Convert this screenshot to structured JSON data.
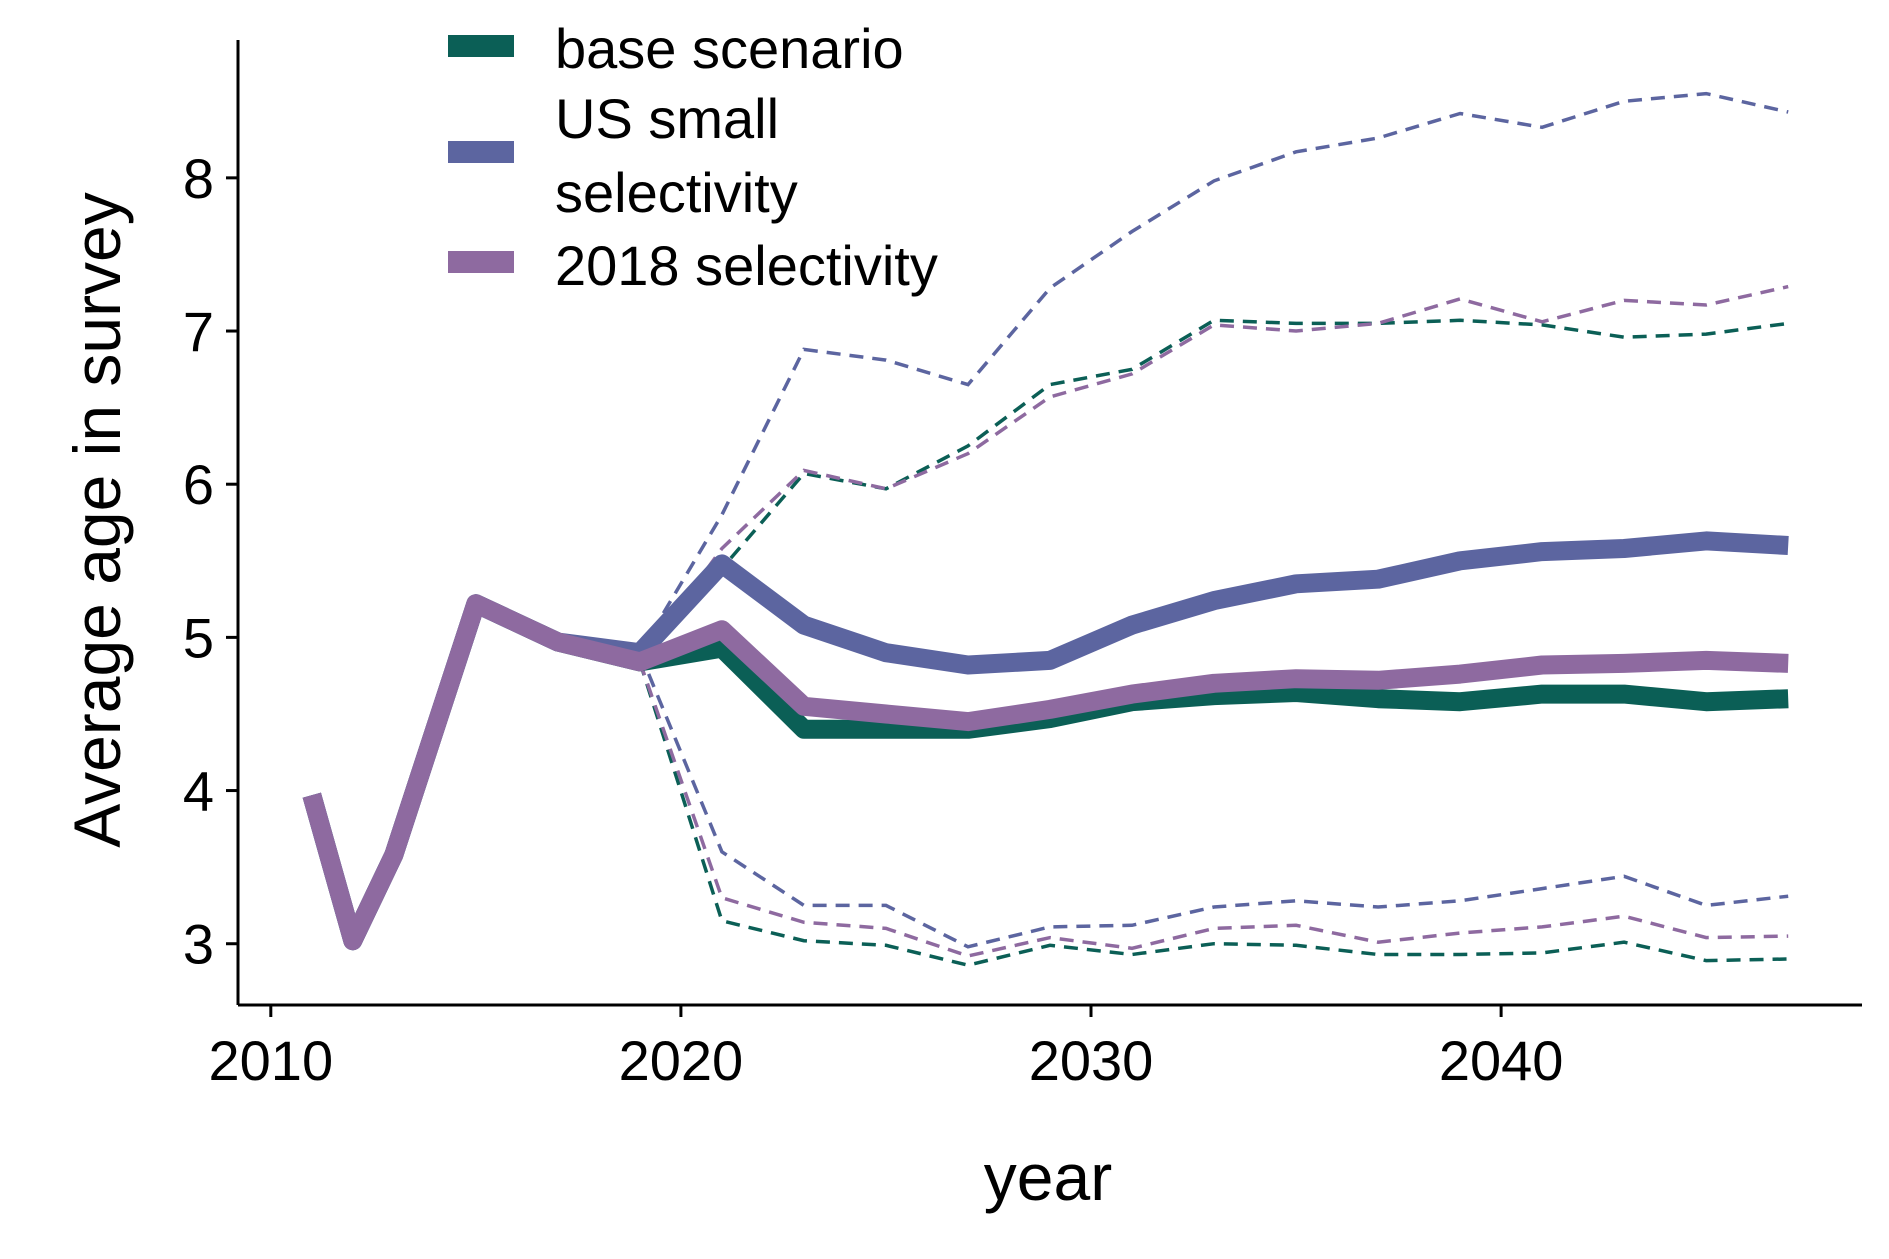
{
  "chart_data": {
    "type": "line",
    "title": "",
    "xlabel": "year",
    "ylabel": "Average age in survey",
    "xlim": [
      2009.2,
      2048.8
    ],
    "ylim": [
      2.6,
      8.9
    ],
    "xticks": [
      2010,
      2020,
      2030,
      2040
    ],
    "yticks": [
      3,
      4,
      5,
      6,
      7,
      8
    ],
    "grid": false,
    "legend_position": "top-left",
    "series": [
      {
        "name": "base scenario",
        "color": "#0b5f56",
        "median": {
          "x": [
            2011,
            2012,
            2013,
            2015,
            2017,
            2019,
            2021,
            2023,
            2025,
            2027,
            2029,
            2031,
            2033,
            2035,
            2037,
            2039,
            2041,
            2043,
            2045,
            2047
          ],
          "y": [
            3.97,
            3.02,
            3.58,
            5.22,
            4.97,
            4.84,
            4.93,
            4.4,
            4.4,
            4.4,
            4.47,
            4.58,
            4.62,
            4.64,
            4.6,
            4.58,
            4.63,
            4.63,
            4.58,
            4.6
          ]
        },
        "lower": {
          "x": [
            2019,
            2021,
            2023,
            2025,
            2027,
            2029,
            2031,
            2033,
            2035,
            2037,
            2039,
            2041,
            2043,
            2045,
            2047
          ],
          "y": [
            4.84,
            3.15,
            3.02,
            2.99,
            2.86,
            2.99,
            2.93,
            3.0,
            2.99,
            2.93,
            2.93,
            2.94,
            3.01,
            2.89,
            2.9
          ]
        },
        "upper": {
          "x": [
            2019,
            2021,
            2023,
            2025,
            2027,
            2029,
            2031,
            2033,
            2035,
            2037,
            2039,
            2041,
            2043,
            2045,
            2047
          ],
          "y": [
            4.84,
            5.45,
            6.07,
            5.97,
            6.25,
            6.65,
            6.75,
            7.07,
            7.05,
            7.05,
            7.07,
            7.04,
            6.96,
            6.98,
            7.05
          ]
        }
      },
      {
        "name": "US small selectivity",
        "color": "#5c65a0",
        "median": {
          "x": [
            2011,
            2012,
            2013,
            2015,
            2017,
            2019,
            2021,
            2023,
            2025,
            2027,
            2029,
            2031,
            2033,
            2035,
            2037,
            2039,
            2041,
            2043,
            2045,
            2047
          ],
          "y": [
            3.97,
            3.02,
            3.58,
            5.22,
            4.97,
            4.9,
            5.48,
            5.08,
            4.9,
            4.82,
            4.85,
            5.08,
            5.24,
            5.35,
            5.38,
            5.5,
            5.56,
            5.58,
            5.63,
            5.6
          ]
        },
        "lower": {
          "x": [
            2019,
            2021,
            2023,
            2025,
            2027,
            2029,
            2031,
            2033,
            2035,
            2037,
            2039,
            2041,
            2043,
            2045,
            2047
          ],
          "y": [
            4.9,
            3.6,
            3.25,
            3.25,
            2.98,
            3.11,
            3.12,
            3.24,
            3.28,
            3.24,
            3.28,
            3.36,
            3.44,
            3.25,
            3.31
          ]
        },
        "upper": {
          "x": [
            2019,
            2021,
            2023,
            2025,
            2027,
            2029,
            2031,
            2033,
            2035,
            2037,
            2039,
            2041,
            2043,
            2045,
            2047
          ],
          "y": [
            4.9,
            5.8,
            6.88,
            6.81,
            6.65,
            7.28,
            7.65,
            7.98,
            8.17,
            8.26,
            8.42,
            8.33,
            8.5,
            8.55,
            8.43
          ]
        }
      },
      {
        "name": "2018 selectivity",
        "color": "#8e6aa0",
        "median": {
          "x": [
            2011,
            2012,
            2013,
            2015,
            2017,
            2019,
            2021,
            2023,
            2025,
            2027,
            2029,
            2031,
            2033,
            2035,
            2037,
            2039,
            2041,
            2043,
            2045,
            2047
          ],
          "y": [
            3.97,
            3.02,
            3.58,
            5.22,
            4.97,
            4.84,
            5.05,
            4.55,
            4.5,
            4.45,
            4.53,
            4.63,
            4.7,
            4.73,
            4.72,
            4.76,
            4.82,
            4.83,
            4.85,
            4.83
          ]
        },
        "lower": {
          "x": [
            2019,
            2021,
            2023,
            2025,
            2027,
            2029,
            2031,
            2033,
            2035,
            2037,
            2039,
            2041,
            2043,
            2045,
            2047
          ],
          "y": [
            4.84,
            3.3,
            3.14,
            3.1,
            2.92,
            3.04,
            2.97,
            3.1,
            3.12,
            3.01,
            3.07,
            3.11,
            3.18,
            3.04,
            3.05
          ]
        },
        "upper": {
          "x": [
            2019,
            2021,
            2023,
            2025,
            2027,
            2029,
            2031,
            2033,
            2035,
            2037,
            2039,
            2041,
            2043,
            2045,
            2047
          ],
          "y": [
            4.84,
            5.58,
            6.09,
            5.97,
            6.2,
            6.57,
            6.72,
            7.04,
            7.0,
            7.05,
            7.21,
            7.06,
            7.2,
            7.17,
            7.29
          ]
        }
      }
    ]
  }
}
